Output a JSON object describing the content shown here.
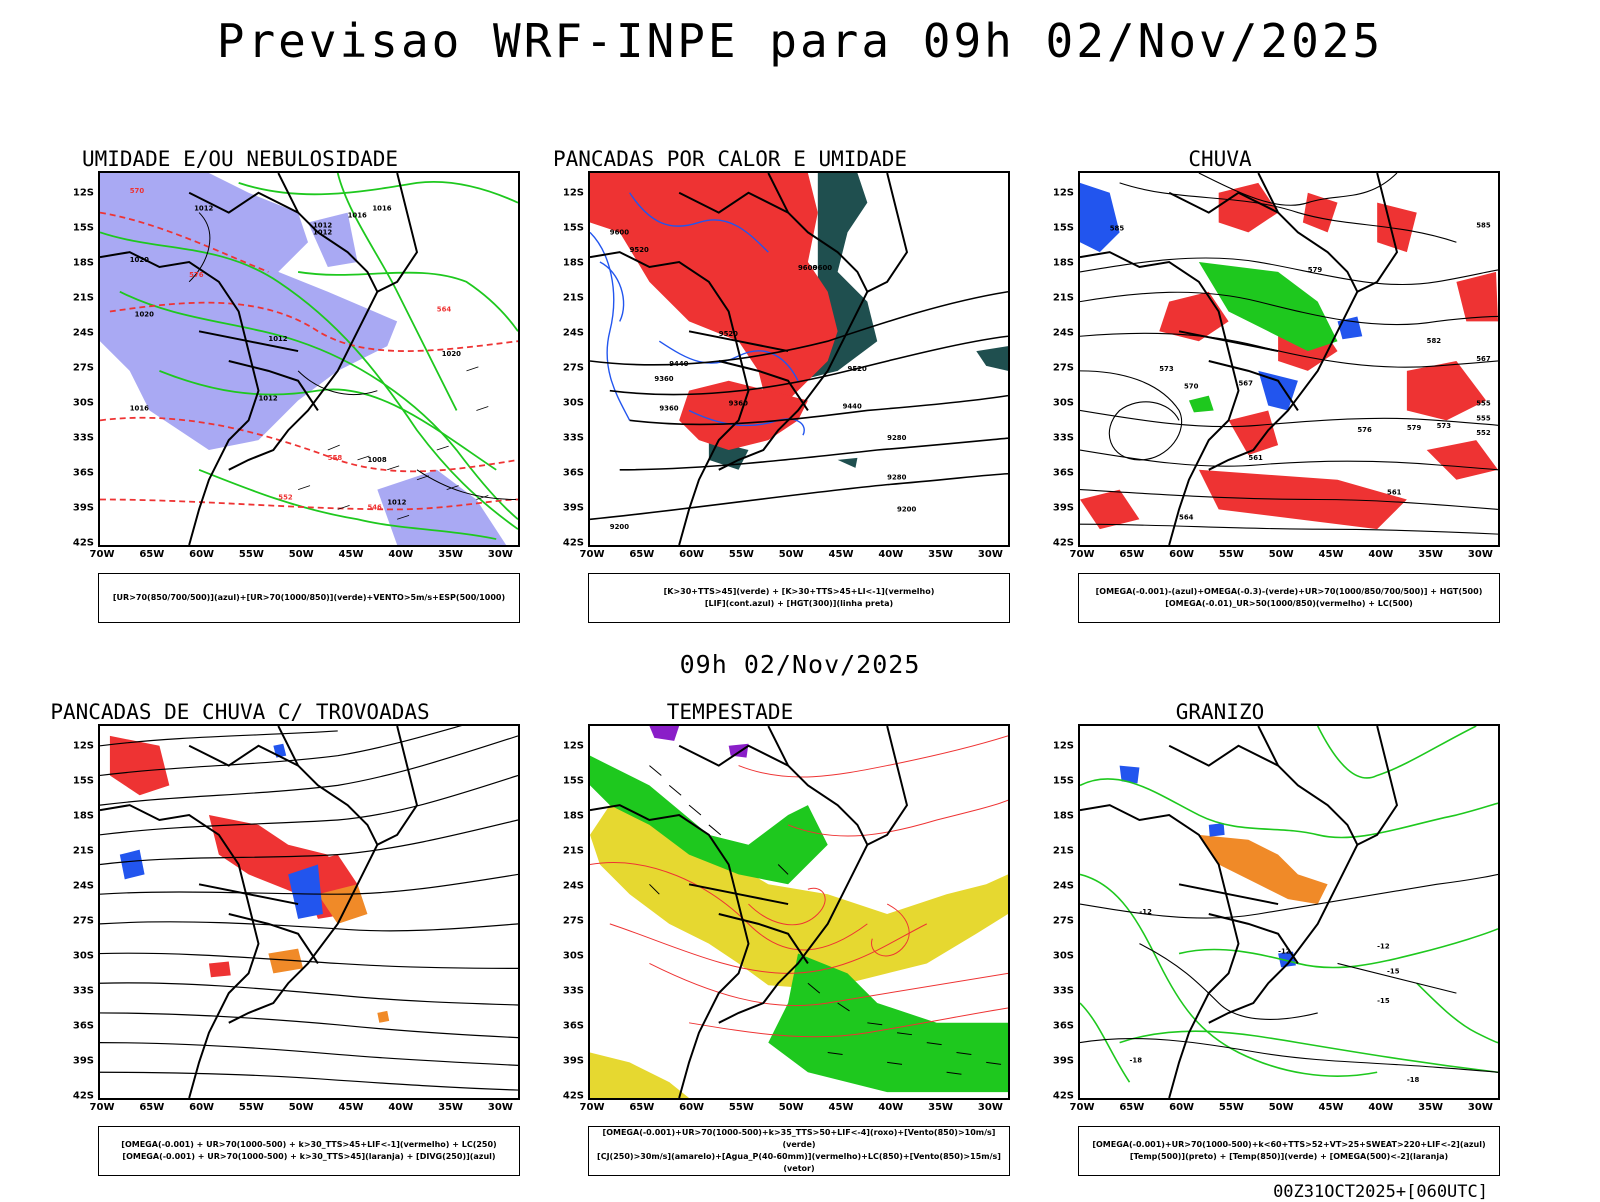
{
  "header": {
    "title": "Previsao WRF-INPE  para 09h 02/Nov/2025"
  },
  "middle": {
    "title": "09h 02/Nov/2025"
  },
  "footer": {
    "run_id": "00Z31OCT2025+[060UTC]"
  },
  "axes": {
    "lat": [
      "12S",
      "15S",
      "18S",
      "21S",
      "24S",
      "27S",
      "30S",
      "33S",
      "36S",
      "39S",
      "42S"
    ],
    "lon": [
      "70W",
      "65W",
      "60W",
      "55W",
      "50W",
      "45W",
      "40W",
      "35W",
      "30W"
    ]
  },
  "colors": {
    "blue_fill": "#a9a9f3",
    "green": "#1ec81e",
    "red": "#ee3333",
    "dark_teal": "#1f4f4f",
    "blue": "#2255ee",
    "yellow": "#e6d830",
    "purple": "#8a1ec8",
    "orange": "#f08a28"
  },
  "panels": [
    {
      "title": "UMIDADE E/OU NEBULOSIDADE",
      "legend": [
        "[UR>70(850/700/500)](azul)+[UR>70(1000/850)](verde)+VENTO>5m/s+ESP(500/1000)"
      ],
      "contour_labels": [
        "1012",
        "1012",
        "1012",
        "1016",
        "1016",
        "1020",
        "1020",
        "1012",
        "1012",
        "1016",
        "1008",
        "1012",
        "1020",
        "570",
        "576",
        "564",
        "558",
        "552",
        "546"
      ]
    },
    {
      "title": "PANCADAS POR CALOR E UMIDADE",
      "legend": [
        "[K>30+TTS>45](verde)  +  [K>30+TTS>45+LI<-1](vermelho)",
        "[LIF](cont.azul)  +  [HGT(300)](linha preta)"
      ],
      "contour_labels": [
        "9600",
        "9520",
        "9600",
        "9600",
        "9520",
        "9440",
        "9520",
        "9360",
        "9440",
        "9360",
        "9280",
        "9280",
        "9200",
        "9200",
        "9360"
      ]
    },
    {
      "title": "CHUVA",
      "legend": [
        "[OMEGA(-0.001)-(azul)+OMEGA(-0.3)-(verde)+UR>70(1000/850/700/500)]  +  HGT(500)",
        "[OMEGA(-0.01)_UR>50(1000/850)(vermelho)  +  LC(500)"
      ],
      "contour_labels": [
        "585",
        "585",
        "579",
        "582",
        "573",
        "570",
        "567",
        "573",
        "576",
        "561",
        "567",
        "561",
        "564",
        "555",
        "555",
        "552",
        "579"
      ]
    },
    {
      "title": "PANCADAS DE CHUVA C/ TROVOADAS",
      "legend": [
        "[OMEGA(-0.001)  +  UR>70(1000-500)  +  k>30_TTS>45+LIF<-1](vermelho)  +  LC(250)",
        "[OMEGA(-0.001)  +  UR>70(1000-500)  +  k>30_TTS>45](laranja)  +  [DIVG(250)](azul)"
      ],
      "contour_labels": []
    },
    {
      "title": "TEMPESTADE",
      "legend": [
        "[OMEGA(-0.001)+UR>70(1000-500)+k>35_TTS>50+LIF<-4](roxo)+[Vento(850)>10m/s](verde)",
        "[CJ(250)>30m/s](amarelo)+[Agua_P(40-60mm)](vermelho)+LC(850)+[Vento(850)>15m/s](vetor)"
      ],
      "contour_labels": []
    },
    {
      "title": "GRANIZO",
      "legend": [
        "[OMEGA(-0.001)+UR>70(1000-500)+k<60+TTS>52+VT>25+SWEAT>220+LIF<-2](azul)",
        "[Temp(500)](preto)  +  [Temp(850)](verde)  +  [OMEGA(500)<-2](laranja)"
      ],
      "contour_labels": [
        "-12",
        "-12",
        "-12",
        "-15",
        "-15",
        "-18",
        "-18"
      ]
    }
  ]
}
